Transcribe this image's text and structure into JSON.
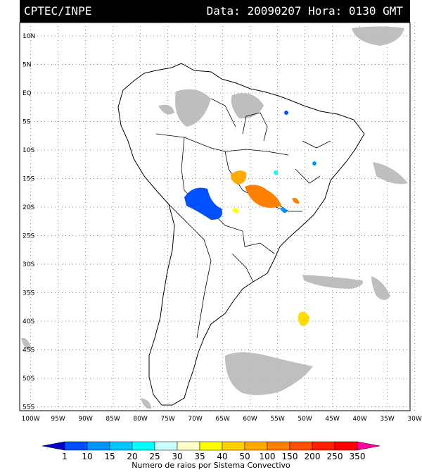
{
  "header": {
    "source": "CPTEC/INPE",
    "datetime": "Data: 20090207 Hora: 0130 GMT"
  },
  "map": {
    "lat_labels": [
      "10N",
      "5N",
      "EQ",
      "5S",
      "10S",
      "15S",
      "20S",
      "25S",
      "30S",
      "35S",
      "40S",
      "45S",
      "50S",
      "55S"
    ],
    "lat_values": [
      10,
      5,
      0,
      -5,
      -10,
      -15,
      -20,
      -25,
      -30,
      -35,
      -40,
      -45,
      -50,
      -55
    ],
    "lon_labels": [
      "100W",
      "95W",
      "90W",
      "85W",
      "80W",
      "75W",
      "70W",
      "65W",
      "60W",
      "55W",
      "50W",
      "45W",
      "40W",
      "35W",
      "30W"
    ],
    "lon_values": [
      -100,
      -95,
      -90,
      -85,
      -80,
      -75,
      -70,
      -65,
      -60,
      -55,
      -50,
      -45,
      -40,
      -35,
      -30
    ]
  },
  "legend": {
    "labels": [
      "1",
      "10",
      "15",
      "20",
      "25",
      "30",
      "35",
      "40",
      "50",
      "100",
      "150",
      "200",
      "250",
      "350"
    ],
    "colors": [
      "#0000c8",
      "#0050ff",
      "#0096ff",
      "#00c8ff",
      "#00ffff",
      "#c8ffff",
      "#ffffc8",
      "#ffff00",
      "#ffd000",
      "#ffaa00",
      "#ff8000",
      "#ff5000",
      "#ff2000",
      "#ff0000",
      "#ff00a0"
    ],
    "title": "Numero de raios por Sistema Convectivo"
  }
}
